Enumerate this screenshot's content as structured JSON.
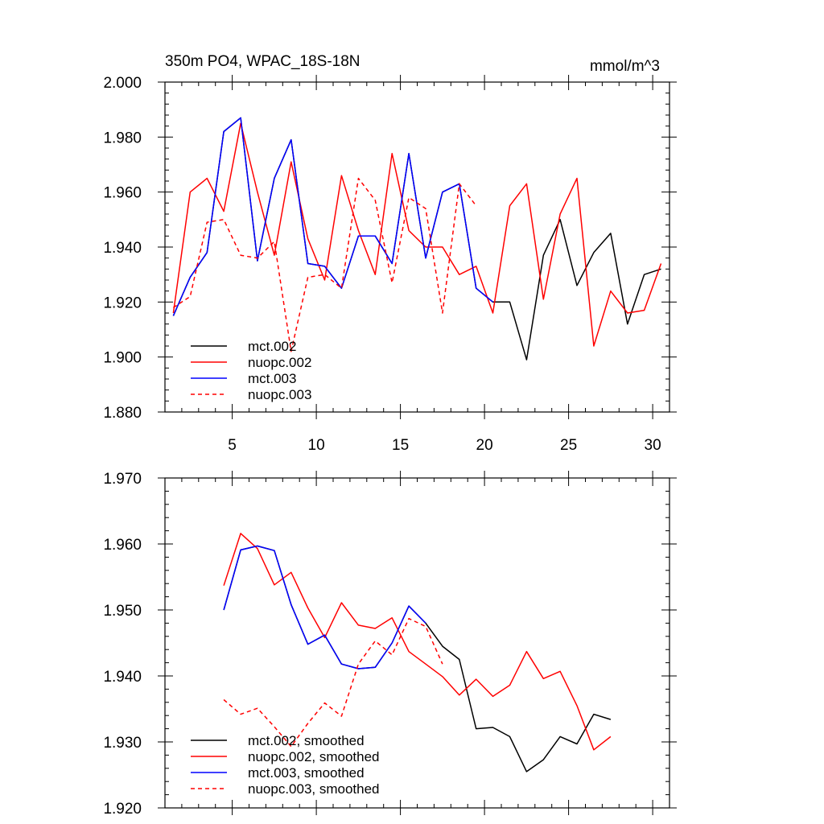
{
  "chart_data": [
    {
      "type": "line",
      "title": "350m PO4, WPAC_18S-18N",
      "units": "mmol/m^3",
      "xlim": [
        1,
        31
      ],
      "ylim": [
        1.88,
        2.0
      ],
      "xticks": [
        5,
        10,
        15,
        20,
        25,
        30
      ],
      "xtick_labels": [
        "5",
        "10",
        "15",
        "20",
        "25",
        "30"
      ],
      "yticks": [
        1.88,
        1.9,
        1.92,
        1.94,
        1.96,
        1.98,
        2.0
      ],
      "ytick_labels": [
        "1.880",
        "1.900",
        "1.920",
        "1.940",
        "1.960",
        "1.980",
        "2.000"
      ],
      "legend_position": "bottom-left",
      "series": [
        {
          "name": "mct.002",
          "color": "#000000",
          "dash": "solid",
          "x": [
            1.5,
            2.5,
            3.5,
            4.5,
            5.5,
            6.5,
            7.5,
            8.5,
            9.5,
            10.5,
            11.5,
            12.5,
            13.5,
            14.5,
            15.5,
            16.5,
            17.5,
            18.5,
            19.5,
            20.5,
            21.5,
            22.5,
            23.5,
            24.5,
            25.5,
            26.5,
            27.5,
            28.5,
            29.5,
            30.5
          ],
          "values": [
            1.915,
            1.929,
            1.938,
            1.982,
            1.987,
            1.935,
            1.965,
            1.979,
            1.934,
            1.933,
            1.925,
            1.944,
            1.944,
            1.934,
            1.974,
            1.936,
            1.96,
            1.963,
            1.925,
            1.92,
            1.92,
            1.899,
            1.937,
            1.95,
            1.926,
            1.938,
            1.945,
            1.912,
            1.93,
            1.932
          ]
        },
        {
          "name": "nuopc.002",
          "color": "#ff0000",
          "dash": "solid",
          "x": [
            1.5,
            2.5,
            3.5,
            4.5,
            5.5,
            6.5,
            7.5,
            8.5,
            9.5,
            10.5,
            11.5,
            12.5,
            13.5,
            14.5,
            15.5,
            16.5,
            17.5,
            18.5,
            19.5,
            20.5,
            21.5,
            22.5,
            23.5,
            24.5,
            25.5,
            26.5,
            27.5,
            28.5,
            29.5,
            30.5
          ],
          "values": [
            1.916,
            1.96,
            1.965,
            1.953,
            1.985,
            1.96,
            1.937,
            1.971,
            1.943,
            1.928,
            1.966,
            1.946,
            1.93,
            1.974,
            1.946,
            1.94,
            1.94,
            1.93,
            1.933,
            1.916,
            1.955,
            1.963,
            1.921,
            1.952,
            1.965,
            1.904,
            1.924,
            1.916,
            1.917,
            1.934
          ]
        },
        {
          "name": "mct.003",
          "color": "#0000ff",
          "dash": "solid",
          "x": [
            1.5,
            2.5,
            3.5,
            4.5,
            5.5,
            6.5,
            7.5,
            8.5,
            9.5,
            10.5,
            11.5,
            12.5,
            13.5,
            14.5,
            15.5,
            16.5,
            17.5,
            18.5,
            19.5,
            20.5
          ],
          "values": [
            1.915,
            1.929,
            1.938,
            1.982,
            1.987,
            1.935,
            1.965,
            1.979,
            1.934,
            1.933,
            1.925,
            1.944,
            1.944,
            1.934,
            1.974,
            1.936,
            1.96,
            1.963,
            1.925,
            1.92
          ]
        },
        {
          "name": "nuopc.003",
          "color": "#ff0000",
          "dash": "dashed",
          "x": [
            1.5,
            2.5,
            3.5,
            4.5,
            5.5,
            6.5,
            7.5,
            8.5,
            9.5,
            10.5,
            11.5,
            12.5,
            13.5,
            14.5,
            15.5,
            16.5,
            17.5,
            18.5,
            19.5
          ],
          "values": [
            1.918,
            1.922,
            1.949,
            1.95,
            1.937,
            1.936,
            1.942,
            1.902,
            1.929,
            1.93,
            1.925,
            1.965,
            1.957,
            1.927,
            1.958,
            1.954,
            1.916,
            1.963,
            1.955
          ]
        }
      ]
    },
    {
      "type": "line",
      "title": "",
      "units": "",
      "xlim": [
        1,
        31
      ],
      "ylim": [
        1.92,
        1.97
      ],
      "xticks": [
        5,
        10,
        15,
        20,
        25,
        30
      ],
      "xtick_labels": [],
      "yticks": [
        1.92,
        1.93,
        1.94,
        1.95,
        1.96,
        1.97
      ],
      "ytick_labels": [
        "1.920",
        "1.930",
        "1.940",
        "1.950",
        "1.960",
        "1.970"
      ],
      "legend_position": "bottom-left",
      "series": [
        {
          "name": "mct.002, smoothed",
          "color": "#000000",
          "dash": "solid",
          "x": [
            4.5,
            5.5,
            6.5,
            7.5,
            8.5,
            9.5,
            10.5,
            11.5,
            12.5,
            13.5,
            14.5,
            15.5,
            16.5,
            17.5,
            18.5,
            19.5,
            20.5,
            21.5,
            22.5,
            23.5,
            24.5,
            25.5,
            26.5,
            27.5
          ],
          "values": [
            1.95,
            1.9591,
            1.9597,
            1.959,
            1.9508,
            1.9448,
            1.9462,
            1.9418,
            1.9411,
            1.9413,
            1.945,
            1.9506,
            1.948,
            1.9445,
            1.9425,
            1.932,
            1.9322,
            1.9308,
            1.9255,
            1.9273,
            1.9308,
            1.9297,
            1.9342,
            1.9334
          ]
        },
        {
          "name": "nuopc.002, smoothed",
          "color": "#ff0000",
          "dash": "solid",
          "x": [
            4.5,
            5.5,
            6.5,
            7.5,
            8.5,
            9.5,
            10.5,
            11.5,
            12.5,
            13.5,
            14.5,
            15.5,
            16.5,
            17.5,
            18.5,
            19.5,
            20.5,
            21.5,
            22.5,
            23.5,
            24.5,
            25.5,
            26.5,
            27.5
          ],
          "values": [
            1.9537,
            1.9616,
            1.9593,
            1.9538,
            1.9557,
            1.9503,
            1.9458,
            1.9511,
            1.9477,
            1.9472,
            1.9488,
            1.9437,
            1.9418,
            1.9399,
            1.9371,
            1.9395,
            1.9369,
            1.9386,
            1.9437,
            1.9396,
            1.9407,
            1.9355,
            1.9288,
            1.9308
          ]
        },
        {
          "name": "mct.003, smoothed",
          "color": "#0000ff",
          "dash": "solid",
          "x": [
            4.5,
            5.5,
            6.5,
            7.5,
            8.5,
            9.5,
            10.5,
            11.5,
            12.5,
            13.5,
            14.5,
            15.5,
            16.5
          ],
          "values": [
            1.95,
            1.9591,
            1.9597,
            1.959,
            1.9508,
            1.9448,
            1.9462,
            1.9418,
            1.9411,
            1.9413,
            1.945,
            1.9506,
            1.948
          ]
        },
        {
          "name": "nuopc.003, smoothed",
          "color": "#ff0000",
          "dash": "dashed",
          "x": [
            4.5,
            5.5,
            6.5,
            7.5,
            8.5,
            9.5,
            10.5,
            11.5,
            12.5,
            13.5,
            14.5,
            15.5,
            16.5,
            17.5
          ],
          "values": [
            1.9364,
            1.9342,
            1.9351,
            1.9323,
            1.9293,
            1.9328,
            1.9359,
            1.9339,
            1.9418,
            1.9453,
            1.9432,
            1.9487,
            1.9475,
            1.9418
          ]
        }
      ]
    }
  ]
}
